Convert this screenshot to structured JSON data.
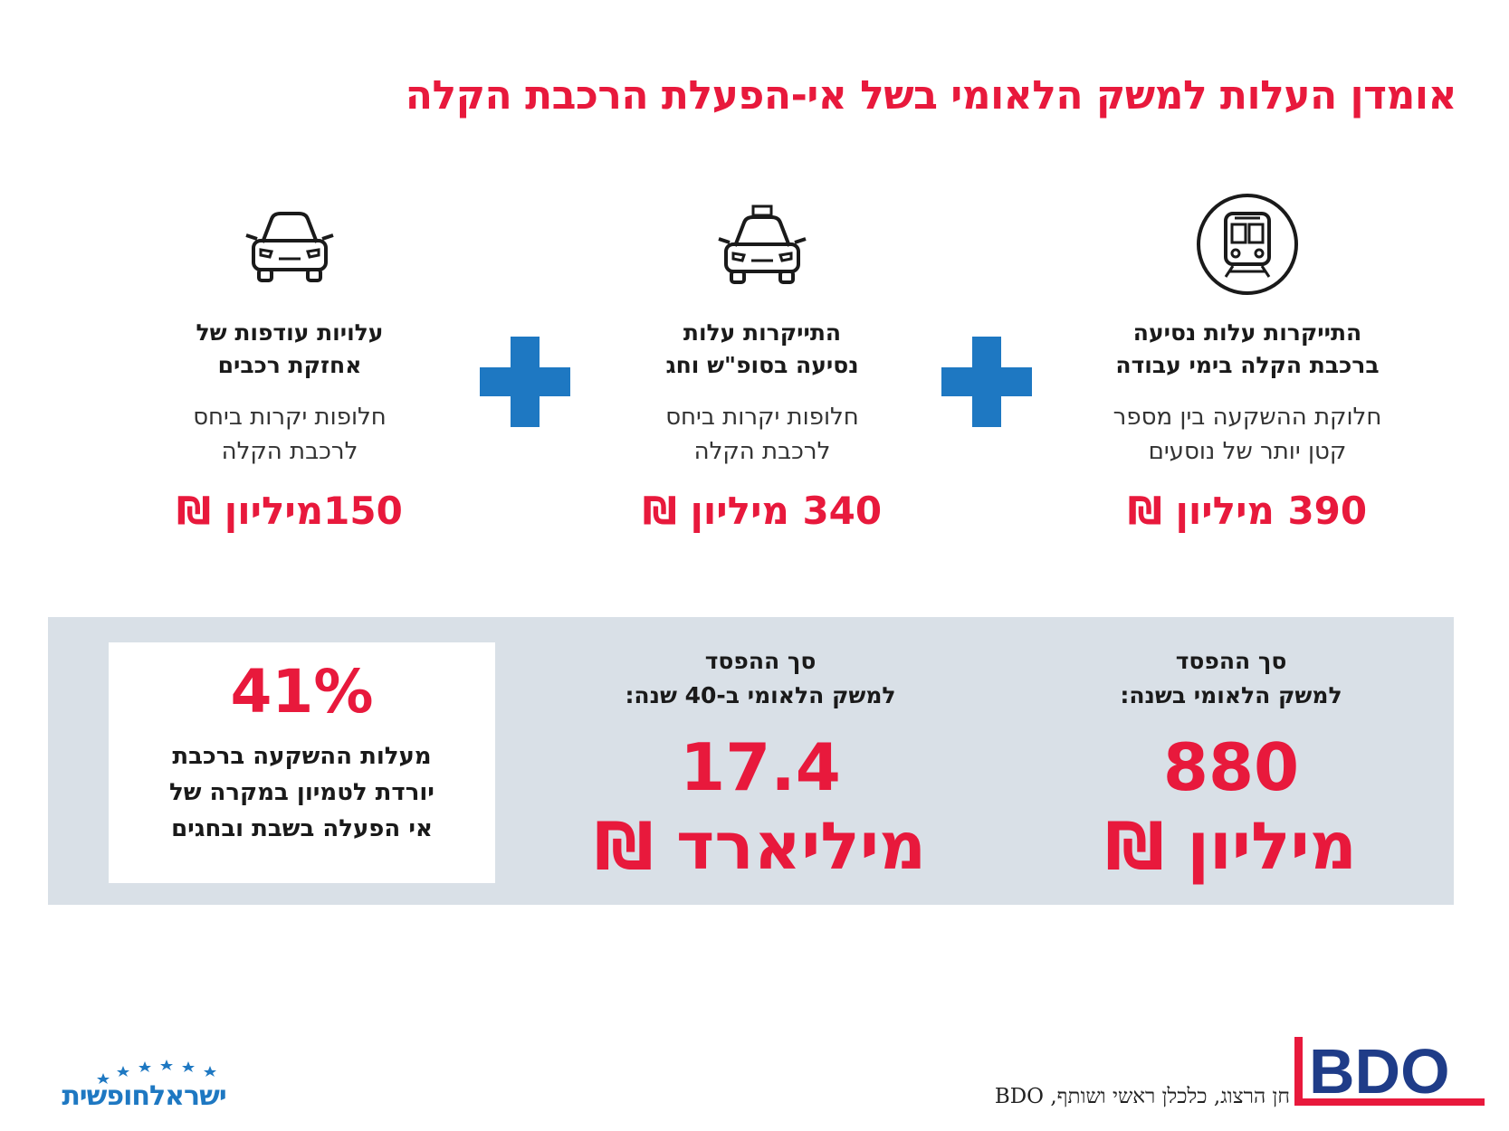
{
  "title": "אומדן העלות למשק הלאומי בשל אי-הפעלת הרכבת הקלה",
  "columns": [
    {
      "icon": "train-icon",
      "heading_line1": "התייקרות עלות נסיעה",
      "heading_line2": "ברכבת הקלה בימי עבודה",
      "desc_line1": "חלוקת ההשקעה בין מספר",
      "desc_line2": "קטן יותר של נוסעים",
      "amount": "390 מיליון ₪"
    },
    {
      "icon": "taxi-icon",
      "heading_line1": "התייקרות עלות",
      "heading_line2": "נסיעה בסופ\"ש וחג",
      "desc_line1": "חלופות יקרות ביחס",
      "desc_line2": "לרכבת הקלה",
      "amount": "340 מיליון ₪"
    },
    {
      "icon": "car-icon",
      "heading_line1": "עלויות עודפות של",
      "heading_line2": "אחזקת רכבים",
      "desc_line1": "חלופות יקרות ביחס",
      "desc_line2": "לרכבת הקלה",
      "amount": "150מיליון ₪"
    }
  ],
  "summary": {
    "annual": {
      "label_line1": "סך ההפסד",
      "label_line2": "למשק הלאומי בשנה:",
      "value": "880",
      "unit": "מיליון ₪"
    },
    "forty_years": {
      "label_line1": "סך ההפסד",
      "label_line2": "למשק הלאומי ב-40 שנה:",
      "value": "17.4",
      "unit": "מיליארד ₪"
    },
    "percent": {
      "value": "41%",
      "text_line1": "מעלות ההשקעה ברכבת",
      "text_line2": "יורדת לטמיון במקרה של",
      "text_line3": "אי הפעלה בשבת ובחגים"
    }
  },
  "credit": "חן הרצוג, כלכלן ראשי ושותף, BDO",
  "logos": {
    "bdo": "BDO",
    "israel": "ישראלחופשית"
  },
  "colors": {
    "accent_red": "#e8193c",
    "plus_blue": "#1e78c2",
    "panel_gray": "#d9e0e7",
    "bdo_blue": "#1f3c88"
  }
}
